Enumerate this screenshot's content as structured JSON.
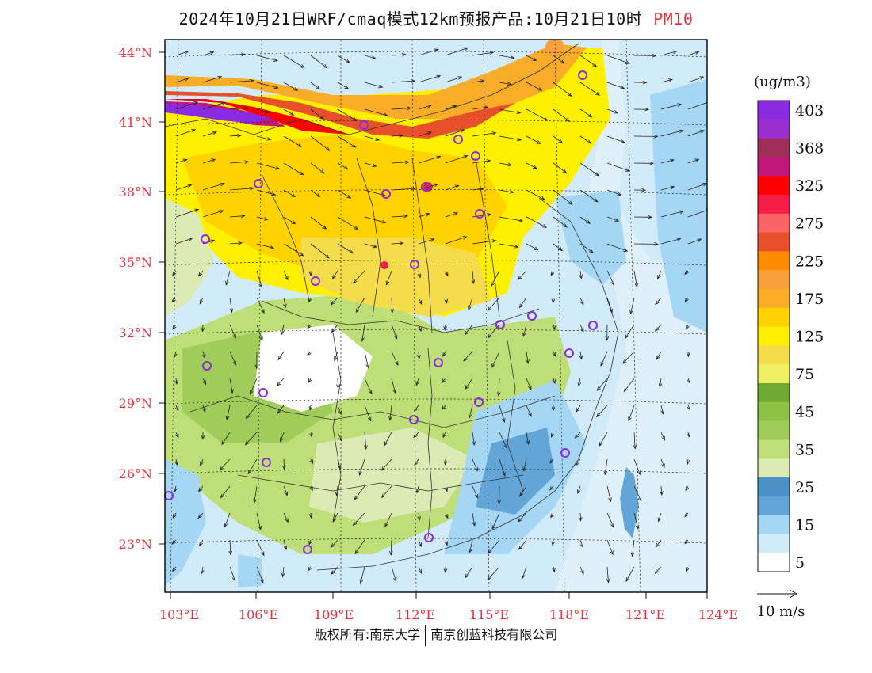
{
  "title": {
    "main": "2024年10月21日WRF/cmaq模式12km预报产品:10月21日10时",
    "pollutant": "PM10",
    "pollutant_color": "#e8343c"
  },
  "axes": {
    "lat_labels": [
      "44°N",
      "41°N",
      "38°N",
      "35°N",
      "32°N",
      "29°N",
      "26°N",
      "23°N"
    ],
    "lon_labels": [
      "103°E",
      "106°E",
      "109°E",
      "112°E",
      "115°E",
      "118°E",
      "121°E",
      "124°E"
    ],
    "label_color": "#e8343c"
  },
  "legend": {
    "unit": "(ug/m3)",
    "bins": [
      {
        "label": "403",
        "color": "#8a2be2"
      },
      {
        "label": "",
        "color": "#9a2fd0"
      },
      {
        "label": "368",
        "color": "#a02c5a"
      },
      {
        "label": "",
        "color": "#c0187a"
      },
      {
        "label": "325",
        "color": "#ff0000"
      },
      {
        "label": "",
        "color": "#f41c48"
      },
      {
        "label": "275",
        "color": "#fa6464"
      },
      {
        "label": "",
        "color": "#e8502c"
      },
      {
        "label": "225",
        "color": "#ff8c00"
      },
      {
        "label": "",
        "color": "#f7a03c"
      },
      {
        "label": "175",
        "color": "#f9ac28"
      },
      {
        "label": "",
        "color": "#ffd200"
      },
      {
        "label": "125",
        "color": "#fff000"
      },
      {
        "label": "",
        "color": "#f5dc4b"
      },
      {
        "label": "75",
        "color": "#f0f064"
      },
      {
        "label": "",
        "color": "#6eaa32"
      },
      {
        "label": "45",
        "color": "#8cc346"
      },
      {
        "label": "",
        "color": "#a0cd5a"
      },
      {
        "label": "35",
        "color": "#bede78"
      },
      {
        "label": "",
        "color": "#dcebb4"
      },
      {
        "label": "25",
        "color": "#4b91c8"
      },
      {
        "label": "",
        "color": "#64a5d7"
      },
      {
        "label": "15",
        "color": "#a5d7f5"
      },
      {
        "label": "",
        "color": "#d2ebfa"
      },
      {
        "label": "5",
        "color": "#ffffff"
      }
    ],
    "wind_ref_label": "10 m/s"
  },
  "footer": {
    "left": "版权所有:南京大学",
    "right": "南京创蓝科技有限公司"
  }
}
